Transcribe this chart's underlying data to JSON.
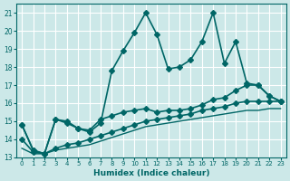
{
  "xlabel": "Humidex (Indice chaleur)",
  "ylabel": "",
  "background_color": "#cce8e8",
  "grid_color": "#ffffff",
  "line_color": "#006666",
  "xlim": [
    -0.5,
    23.5
  ],
  "ylim": [
    13,
    21.5
  ],
  "yticks": [
    13,
    14,
    15,
    16,
    17,
    18,
    19,
    20,
    21
  ],
  "xticks": [
    0,
    1,
    2,
    3,
    4,
    5,
    6,
    7,
    8,
    9,
    10,
    11,
    12,
    13,
    14,
    15,
    16,
    17,
    18,
    19,
    20,
    21,
    22,
    23
  ],
  "series": [
    {
      "x": [
        0,
        1,
        2,
        3,
        4,
        5,
        6,
        7,
        8,
        9,
        10,
        11,
        12,
        13,
        14,
        15,
        16,
        17,
        18,
        19,
        20,
        21,
        22,
        23
      ],
      "y": [
        14.8,
        13.4,
        13.2,
        15.1,
        15.0,
        14.6,
        14.4,
        14.9,
        17.8,
        18.9,
        19.9,
        21.0,
        19.8,
        17.9,
        18.0,
        18.4,
        19.4,
        21.0,
        18.2,
        19.4,
        17.1,
        17.0,
        16.4,
        16.1
      ],
      "marker": "D",
      "markersize": 3,
      "linewidth": 1.2,
      "linestyle": "-"
    },
    {
      "x": [
        0,
        1,
        2,
        3,
        4,
        5,
        6,
        7,
        8,
        9,
        10,
        11,
        12,
        13,
        14,
        15,
        16,
        17,
        18,
        19,
        20,
        21,
        22,
        23
      ],
      "y": [
        14.8,
        13.4,
        13.2,
        15.1,
        14.9,
        14.6,
        14.5,
        15.1,
        15.3,
        15.5,
        15.6,
        15.7,
        15.5,
        15.6,
        15.6,
        15.7,
        15.9,
        16.2,
        16.3,
        16.7,
        17.0,
        17.0,
        16.4,
        16.1
      ],
      "marker": "D",
      "markersize": 3,
      "linewidth": 1.2,
      "linestyle": "-"
    },
    {
      "x": [
        0,
        1,
        2,
        3,
        4,
        5,
        6,
        7,
        8,
        9,
        10,
        11,
        12,
        13,
        14,
        15,
        16,
        17,
        18,
        19,
        20,
        21,
        22,
        23
      ],
      "y": [
        14.0,
        13.3,
        13.2,
        13.5,
        13.7,
        13.8,
        14.0,
        14.2,
        14.4,
        14.6,
        14.8,
        15.0,
        15.1,
        15.2,
        15.3,
        15.4,
        15.6,
        15.7,
        15.8,
        16.0,
        16.1,
        16.1,
        16.1,
        16.1
      ],
      "marker": "D",
      "markersize": 3,
      "linewidth": 1.2,
      "linestyle": "-"
    },
    {
      "x": [
        0,
        1,
        2,
        3,
        4,
        5,
        6,
        7,
        8,
        9,
        10,
        11,
        12,
        13,
        14,
        15,
        16,
        17,
        18,
        19,
        20,
        21,
        22,
        23
      ],
      "y": [
        13.5,
        13.2,
        13.2,
        13.4,
        13.5,
        13.6,
        13.7,
        13.9,
        14.1,
        14.3,
        14.5,
        14.7,
        14.8,
        14.9,
        15.0,
        15.1,
        15.2,
        15.3,
        15.4,
        15.5,
        15.6,
        15.6,
        15.7,
        15.7
      ],
      "marker": null,
      "markersize": 0,
      "linewidth": 1.0,
      "linestyle": "-"
    }
  ]
}
